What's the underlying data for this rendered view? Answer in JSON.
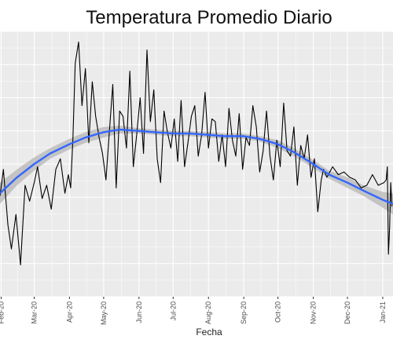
{
  "chart_data": {
    "type": "line",
    "title": "Temperatura Promedio Diario",
    "xlabel": "Fecha",
    "ylabel": "",
    "x_ticks": [
      {
        "label": "Feb-20",
        "date": "2020-02-01"
      },
      {
        "label": "Mar-20",
        "date": "2020-03-01"
      },
      {
        "label": "Apr-20",
        "date": "2020-04-01"
      },
      {
        "label": "May-20",
        "date": "2020-05-01"
      },
      {
        "label": "Jun-20",
        "date": "2020-06-01"
      },
      {
        "label": "Jul-20",
        "date": "2020-07-01"
      },
      {
        "label": "Aug-20",
        "date": "2020-08-01"
      },
      {
        "label": "Sep-20",
        "date": "2020-09-01"
      },
      {
        "label": "Oct-20",
        "date": "2020-10-01"
      },
      {
        "label": "Nov-20",
        "date": "2020-11-01"
      },
      {
        "label": "Dec-20",
        "date": "2020-12-01"
      },
      {
        "label": "Jan-21",
        "date": "2021-01-01"
      }
    ],
    "xlim": [
      "2020-01-31",
      "2021-01-10"
    ],
    "ylim": [
      0,
      100
    ],
    "grid": true,
    "background": "#ebebeb",
    "series": [
      {
        "kind": "raw",
        "color": "#000000",
        "x": [
          "2020-01-31",
          "2020-02-03",
          "2020-02-07",
          "2020-02-10",
          "2020-02-14",
          "2020-02-18",
          "2020-02-22",
          "2020-02-26",
          "2020-03-01",
          "2020-03-04",
          "2020-03-08",
          "2020-03-12",
          "2020-03-16",
          "2020-03-20",
          "2020-03-24",
          "2020-03-28",
          "2020-03-31",
          "2020-04-02",
          "2020-04-04",
          "2020-04-06",
          "2020-04-09",
          "2020-04-12",
          "2020-04-15",
          "2020-04-18",
          "2020-04-21",
          "2020-04-24",
          "2020-04-27",
          "2020-04-30",
          "2020-05-03",
          "2020-05-06",
          "2020-05-09",
          "2020-05-12",
          "2020-05-15",
          "2020-05-18",
          "2020-05-21",
          "2020-05-24",
          "2020-05-27",
          "2020-05-30",
          "2020-06-02",
          "2020-06-05",
          "2020-06-08",
          "2020-06-11",
          "2020-06-14",
          "2020-06-17",
          "2020-06-20",
          "2020-06-23",
          "2020-06-26",
          "2020-06-29",
          "2020-07-02",
          "2020-07-05",
          "2020-07-08",
          "2020-07-11",
          "2020-07-14",
          "2020-07-17",
          "2020-07-20",
          "2020-07-23",
          "2020-07-26",
          "2020-07-29",
          "2020-08-01",
          "2020-08-04",
          "2020-08-07",
          "2020-08-10",
          "2020-08-13",
          "2020-08-16",
          "2020-08-19",
          "2020-08-22",
          "2020-08-25",
          "2020-08-28",
          "2020-08-31",
          "2020-09-03",
          "2020-09-06",
          "2020-09-09",
          "2020-09-12",
          "2020-09-15",
          "2020-09-18",
          "2020-09-21",
          "2020-09-24",
          "2020-09-27",
          "2020-09-30",
          "2020-10-03",
          "2020-10-06",
          "2020-10-09",
          "2020-10-12",
          "2020-10-15",
          "2020-10-18",
          "2020-10-21",
          "2020-10-24",
          "2020-10-27",
          "2020-10-30",
          "2020-11-02",
          "2020-11-05",
          "2020-11-08",
          "2020-11-10",
          "2020-11-13",
          "2020-11-18",
          "2020-11-23",
          "2020-11-28",
          "2020-12-03",
          "2020-12-08",
          "2020-12-13",
          "2020-12-18",
          "2020-12-23",
          "2020-12-28",
          "2021-01-02",
          "2021-01-04",
          "2021-01-05",
          "2021-01-06",
          "2021-01-07",
          "2021-01-08",
          "2021-01-09"
        ],
        "y": [
          38,
          48,
          27,
          18,
          31,
          12,
          42,
          36,
          43,
          49,
          37,
          42,
          33,
          48,
          52,
          39,
          46,
          41,
          60,
          88,
          96,
          72,
          86,
          58,
          81,
          68,
          60,
          54,
          44,
          62,
          80,
          41,
          70,
          68,
          56,
          85,
          49,
          61,
          75,
          54,
          93,
          66,
          78,
          52,
          43,
          70,
          62,
          56,
          67,
          51,
          74,
          49,
          58,
          68,
          72,
          53,
          61,
          77,
          56,
          67,
          66,
          51,
          61,
          49,
          71,
          59,
          53,
          69,
          48,
          60,
          57,
          72,
          64,
          47,
          55,
          70,
          53,
          44,
          59,
          49,
          73,
          55,
          53,
          64,
          42,
          57,
          52,
          61,
          45,
          52,
          32,
          44,
          48,
          45,
          49,
          46,
          47,
          45,
          44,
          41,
          42,
          46,
          42,
          43,
          44,
          49,
          16,
          26,
          43,
          34
        ]
      },
      {
        "kind": "smooth",
        "color": "#3366ff",
        "ribbon_color": "#b5b5b5",
        "x": [
          "2020-01-31",
          "2020-02-15",
          "2020-03-01",
          "2020-03-15",
          "2020-04-01",
          "2020-04-15",
          "2020-05-01",
          "2020-05-15",
          "2020-06-01",
          "2020-06-15",
          "2020-07-01",
          "2020-07-15",
          "2020-08-01",
          "2020-08-15",
          "2020-09-01",
          "2020-09-15",
          "2020-10-01",
          "2020-10-15",
          "2020-11-01",
          "2020-11-15",
          "2020-12-01",
          "2020-12-15",
          "2021-01-01",
          "2021-01-10"
        ],
        "y": [
          39,
          45,
          50,
          54,
          57.5,
          60,
          62,
          63,
          62.5,
          62,
          61.5,
          61.5,
          61,
          60.5,
          60.5,
          59.5,
          57.5,
          54.5,
          50,
          46,
          43,
          40,
          36.5,
          35
        ],
        "lower": [
          35,
          42,
          47.5,
          52,
          55.5,
          58,
          60,
          61.5,
          61.5,
          61,
          60.5,
          60.5,
          60,
          59.5,
          59.5,
          58.5,
          56,
          53,
          48.5,
          44.5,
          41,
          38,
          33.5,
          31
        ],
        "upper": [
          43,
          48,
          52.5,
          56,
          59.5,
          62,
          64,
          64.5,
          63.5,
          63,
          62.5,
          62.5,
          62,
          61.5,
          61.5,
          60.5,
          59,
          56,
          51.5,
          47.5,
          45,
          42,
          39.5,
          39
        ]
      }
    ]
  }
}
